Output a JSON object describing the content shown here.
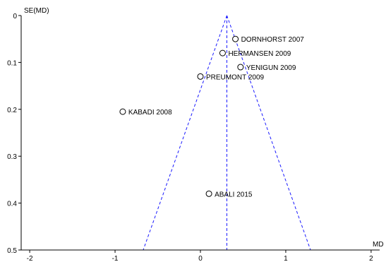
{
  "chart_data": {
    "type": "scatter",
    "title": "",
    "xlabel": "MD",
    "ylabel": "SE(MD)",
    "xlim": [
      -2.1,
      2.1
    ],
    "ylim": [
      0,
      0.5
    ],
    "y_inverted": true,
    "x_ticks": [
      "-2",
      "-1",
      "0",
      "1",
      "2"
    ],
    "x_tick_values": [
      -2,
      -1,
      0,
      1,
      2
    ],
    "y_ticks": [
      "0",
      "0.1",
      "0.2",
      "0.3",
      "0.4",
      "0.5"
    ],
    "y_tick_values": [
      0,
      0.1,
      0.2,
      0.3,
      0.4,
      0.5
    ],
    "pooled_md": 0.31,
    "funnel_base_se": 0.5,
    "funnel_color": "#1a1aff",
    "points": [
      {
        "label": "DORNHORST 2007",
        "x": 0.41,
        "y": 0.05
      },
      {
        "label": "HERMANSEN 2009",
        "x": 0.26,
        "y": 0.08
      },
      {
        "label": "YENIGUN 2009",
        "x": 0.47,
        "y": 0.11
      },
      {
        "label": "PREUMONT 2009",
        "x": 0.0,
        "y": 0.13
      },
      {
        "label": "KABADI 2008",
        "x": -0.91,
        "y": 0.205
      },
      {
        "label": "ABALI 2015",
        "x": 0.1,
        "y": 0.38
      }
    ]
  }
}
